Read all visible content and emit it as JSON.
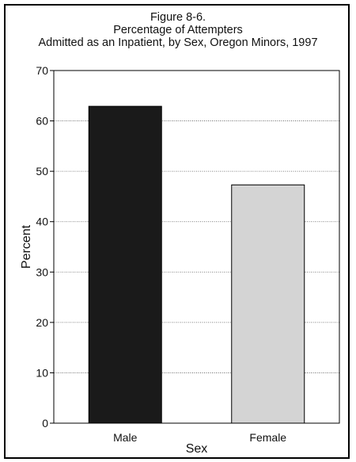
{
  "chart_data": {
    "type": "bar",
    "title": "Figure 8-6.",
    "subtitle_lines": [
      "Percentage of Attempters",
      "Admitted as an Inpatient, by Sex, Oregon Minors, 1997"
    ],
    "xlabel": "Sex",
    "ylabel": "Percent",
    "categories": [
      "Male",
      "Female"
    ],
    "values": [
      62.9,
      47.3
    ],
    "bar_colors": [
      "#1a1a1a",
      "#d4d4d4"
    ],
    "ylim": [
      0,
      70
    ],
    "yticks": [
      0,
      10,
      20,
      30,
      40,
      50,
      60,
      70
    ],
    "grid": true
  }
}
